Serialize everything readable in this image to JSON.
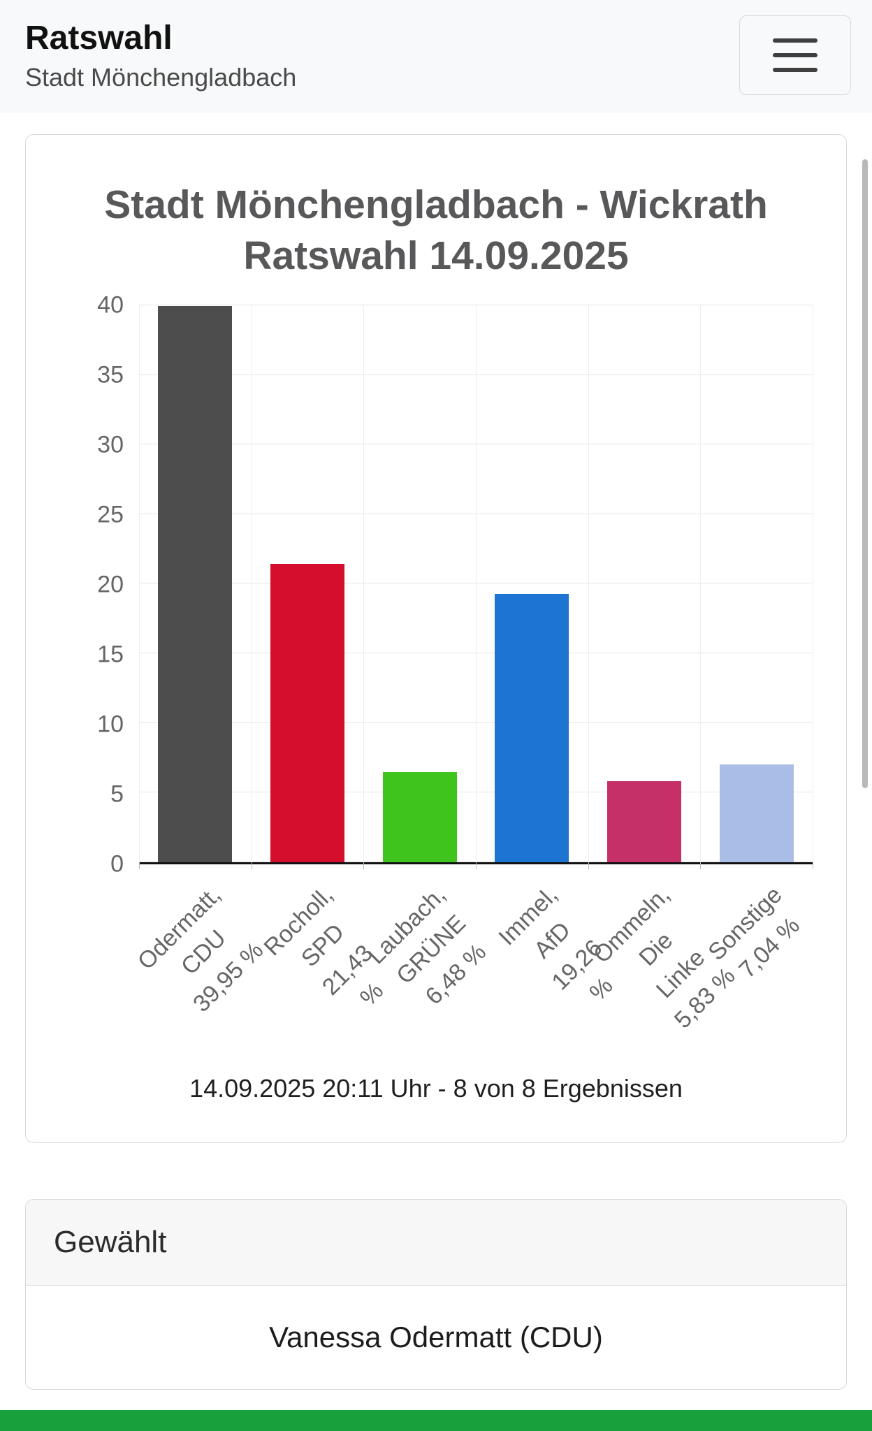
{
  "header": {
    "title": "Ratswahl",
    "subtitle": "Stadt Mönchengladbach"
  },
  "chart_card": {
    "caption": "14.09.2025 20:11 Uhr - 8 von 8 Ergebnissen"
  },
  "chart_data": {
    "type": "bar",
    "title": "Stadt Mönchengladbach - Wickrath Ratswahl 14.09.2025",
    "title_lines": [
      "Stadt Mönchengladbach - Wickrath",
      "Ratswahl 14.09.2025"
    ],
    "categories": [
      "Odermatt, CDU",
      "Rocholl, SPD",
      "Laubach, GRÜNE",
      "Immel, AfD",
      "Ommeln, Die Linke",
      "Sonstige"
    ],
    "values": [
      39.95,
      21.43,
      6.48,
      19.26,
      5.83,
      7.04
    ],
    "value_labels": [
      "39,95 %",
      "21,43 %",
      "6,48 %",
      "19,26 %",
      "5,83 %",
      "7,04 %"
    ],
    "colors": [
      "#4d4d4d",
      "#d40e2c",
      "#3fc41e",
      "#1e74d2",
      "#c53069",
      "#aabde6"
    ],
    "ylim": [
      0,
      40
    ],
    "yticks": [
      0,
      5,
      10,
      15,
      20,
      25,
      30,
      35,
      40
    ],
    "xlabel": "",
    "ylabel": "",
    "grid": true,
    "legend": "none"
  },
  "result_card": {
    "header": "Gewählt",
    "value": "Vanessa Odermatt (CDU)"
  },
  "colors": {
    "bottom_strip": "#17a03c"
  }
}
